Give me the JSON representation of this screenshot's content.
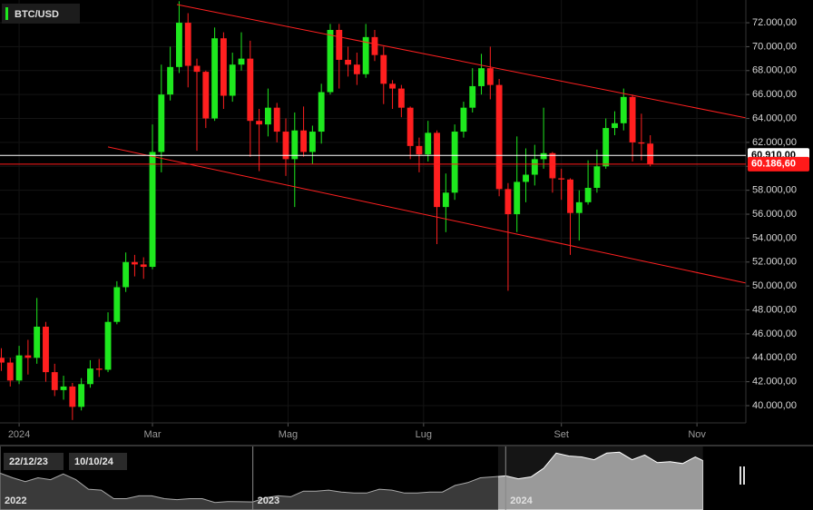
{
  "chart_data": {
    "type": "candlestick",
    "title": "BTC/USD",
    "x": [
      -8,
      -4,
      0,
      4,
      8,
      12,
      16,
      20,
      24,
      28,
      32,
      36,
      40,
      44,
      48,
      52,
      56,
      60,
      64,
      68,
      72,
      76,
      80,
      84,
      88,
      92,
      96,
      100,
      104,
      108,
      112,
      116,
      120,
      124,
      128,
      132,
      136,
      140,
      144,
      148,
      152,
      156,
      160,
      164,
      168,
      172,
      176,
      180,
      184,
      188,
      192,
      196,
      200,
      204,
      208,
      212,
      216,
      220,
      224,
      228,
      232,
      236,
      240,
      244,
      248,
      252,
      256,
      260,
      264,
      268,
      272,
      276,
      280,
      284
    ],
    "open": [
      44000,
      43600,
      42100,
      44200,
      44000,
      46600,
      42800,
      41300,
      41600,
      39900,
      41800,
      43100,
      43000,
      47000,
      49900,
      52000,
      51800,
      51600,
      61200,
      66000,
      68300,
      72000,
      68400,
      67900,
      64000,
      70700,
      65900,
      68500,
      69000,
      63800,
      63500,
      64900,
      62900,
      60600,
      63000,
      61200,
      62900,
      66200,
      71400,
      68900,
      68500,
      67700,
      70800,
      69300,
      66900,
      66500,
      64900,
      61700,
      61000,
      62800,
      56600,
      57800,
      62900,
      64900,
      66700,
      68200,
      66800,
      58100,
      56000,
      58700,
      59300,
      60600,
      61100,
      59000,
      58900,
      56100,
      57000,
      58200,
      60000,
      63200,
      63600,
      65800,
      62000,
      61900
    ],
    "high": [
      44800,
      44000,
      45000,
      45500,
      49000,
      47000,
      43500,
      42500,
      41900,
      42300,
      43800,
      43900,
      47800,
      50400,
      52800,
      52600,
      52400,
      63500,
      68500,
      70000,
      73800,
      72800,
      69000,
      68000,
      71600,
      71200,
      69500,
      71200,
      70500,
      64800,
      66500,
      65300,
      64000,
      64500,
      65000,
      63400,
      66900,
      71900,
      71900,
      70000,
      69500,
      71900,
      71400,
      70000,
      67200,
      66800,
      65000,
      62400,
      63800,
      63000,
      59400,
      63500,
      65400,
      68200,
      69400,
      70000,
      67300,
      58600,
      62500,
      61500,
      61800,
      64900,
      61200,
      59800,
      59000,
      58000,
      60500,
      61400,
      64000,
      64600,
      66500,
      66000,
      64400,
      62600
    ],
    "low": [
      42900,
      41600,
      41800,
      42600,
      43500,
      42000,
      40800,
      40500,
      38800,
      39600,
      41500,
      42400,
      42800,
      46800,
      49500,
      50800,
      50600,
      51400,
      59500,
      65500,
      67800,
      66600,
      61300,
      63200,
      63800,
      64800,
      65400,
      68000,
      60800,
      59600,
      62500,
      62000,
      59200,
      56600,
      60800,
      60200,
      61900,
      66000,
      66500,
      67500,
      66800,
      67400,
      68800,
      65200,
      64800,
      64100,
      60600,
      59500,
      60400,
      53500,
      54500,
      57200,
      62400,
      64500,
      66000,
      65600,
      57500,
      49600,
      54500,
      57000,
      58400,
      59800,
      57800,
      57200,
      52600,
      53800,
      56800,
      57800,
      59800,
      62600,
      63000,
      60400,
      60500,
      60000
    ],
    "close": [
      43600,
      42100,
      44200,
      44000,
      46600,
      42800,
      41300,
      41600,
      39900,
      41800,
      43100,
      43000,
      47000,
      49900,
      52000,
      51800,
      51600,
      61200,
      66000,
      68300,
      72000,
      68400,
      67900,
      64000,
      70700,
      65900,
      68500,
      69000,
      63800,
      63500,
      64900,
      62900,
      60600,
      63000,
      61200,
      62900,
      66200,
      71400,
      68900,
      68500,
      67700,
      70800,
      69300,
      66900,
      66500,
      64900,
      61700,
      61000,
      62800,
      56600,
      57800,
      62900,
      64900,
      66700,
      68200,
      66800,
      58100,
      56000,
      58700,
      59300,
      60600,
      61100,
      59000,
      58900,
      56100,
      57000,
      58200,
      60000,
      63200,
      63600,
      65800,
      62000,
      61900,
      60200
    ],
    "up_color": "#1ee81e",
    "down_color": "#ff1f1f",
    "xlim": [
      -8.6,
      327
    ],
    "xticks": [
      {
        "value": 0,
        "label": "2024"
      },
      {
        "value": 60,
        "label": "Mar"
      },
      {
        "value": 121,
        "label": "Mag"
      },
      {
        "value": 182,
        "label": "Lug"
      },
      {
        "value": 244,
        "label": "Set"
      },
      {
        "value": 305,
        "label": "Nov"
      }
    ],
    "ylim": [
      38560,
      73900
    ],
    "yticks": [
      {
        "value": 40000,
        "label": "40.000,00"
      },
      {
        "value": 42000,
        "label": "42.000,00"
      },
      {
        "value": 44000,
        "label": "44.000,00"
      },
      {
        "value": 46000,
        "label": "46.000,00"
      },
      {
        "value": 48000,
        "label": "48.000,00"
      },
      {
        "value": 50000,
        "label": "50.000,00"
      },
      {
        "value": 52000,
        "label": "52.000,00"
      },
      {
        "value": 54000,
        "label": "54.000,00"
      },
      {
        "value": 56000,
        "label": "56.000,00"
      },
      {
        "value": 58000,
        "label": "58.000,00"
      },
      {
        "value": 60000,
        "label": "60.000,00"
      },
      {
        "value": 62000,
        "label": "62.000,00"
      },
      {
        "value": 64000,
        "label": "64.000,00"
      },
      {
        "value": 66000,
        "label": "66.000,00"
      },
      {
        "value": 68000,
        "label": "68.000,00"
      },
      {
        "value": 70000,
        "label": "70.000,00"
      },
      {
        "value": 72000,
        "label": "72.000,00"
      }
    ],
    "grid": true,
    "trendlines": [
      {
        "x": [
          71,
          327
        ],
        "y": [
          73520,
          64050
        ],
        "color": "#ff2020"
      },
      {
        "x": [
          40,
          327
        ],
        "y": [
          61620,
          50250
        ],
        "color": "#ff2020"
      }
    ],
    "price_lines": [
      {
        "value": 60910,
        "label": "60.910,00",
        "color": "#ffffff"
      },
      {
        "value": 60186.6,
        "label": "60.186,60",
        "color": "#ff1a1a"
      }
    ],
    "navigator": {
      "x": [
        2022.0,
        2022.05,
        2022.1,
        2022.15,
        2022.2,
        2022.25,
        2022.3,
        2022.35,
        2022.4,
        2022.45,
        2022.5,
        2022.55,
        2022.6,
        2022.65,
        2022.7,
        2022.75,
        2022.8,
        2022.85,
        2022.9,
        2022.95,
        2023.0,
        2023.05,
        2023.1,
        2023.15,
        2023.2,
        2023.25,
        2023.3,
        2023.35,
        2023.4,
        2023.45,
        2023.5,
        2023.55,
        2023.6,
        2023.65,
        2023.7,
        2023.75,
        2023.8,
        2023.85,
        2023.9,
        2023.95,
        2024.0,
        2024.05,
        2024.1,
        2024.15,
        2024.2,
        2024.25,
        2024.3,
        2024.35,
        2024.4,
        2024.45,
        2024.5,
        2024.55,
        2024.6,
        2024.65,
        2024.7,
        2024.75,
        2024.78
      ],
      "values": [
        47000,
        42000,
        38000,
        42000,
        40000,
        46000,
        40000,
        30000,
        29000,
        20000,
        20000,
        23000,
        23000,
        20000,
        19000,
        20000,
        20000,
        16000,
        17000,
        16800,
        16600,
        21000,
        23000,
        22000,
        28000,
        28000,
        29000,
        27000,
        26000,
        26000,
        30000,
        29000,
        26000,
        26000,
        27000,
        27000,
        34000,
        37000,
        42000,
        43000,
        44000,
        41000,
        43000,
        52000,
        68000,
        65000,
        64000,
        61000,
        68000,
        69000,
        61000,
        66000,
        58000,
        59000,
        57000,
        64000,
        60200
      ],
      "xlim": [
        2022,
        2024.95
      ],
      "ylim": [
        10000,
        75000
      ],
      "xticks": [
        {
          "value": 2022,
          "label": "2022"
        },
        {
          "value": 2023,
          "label": "2023"
        },
        {
          "value": 2024,
          "label": "2024"
        }
      ],
      "range": [
        2023.97,
        2024.78
      ],
      "range_labels": [
        "22/12/23",
        "10/10/24"
      ]
    }
  }
}
